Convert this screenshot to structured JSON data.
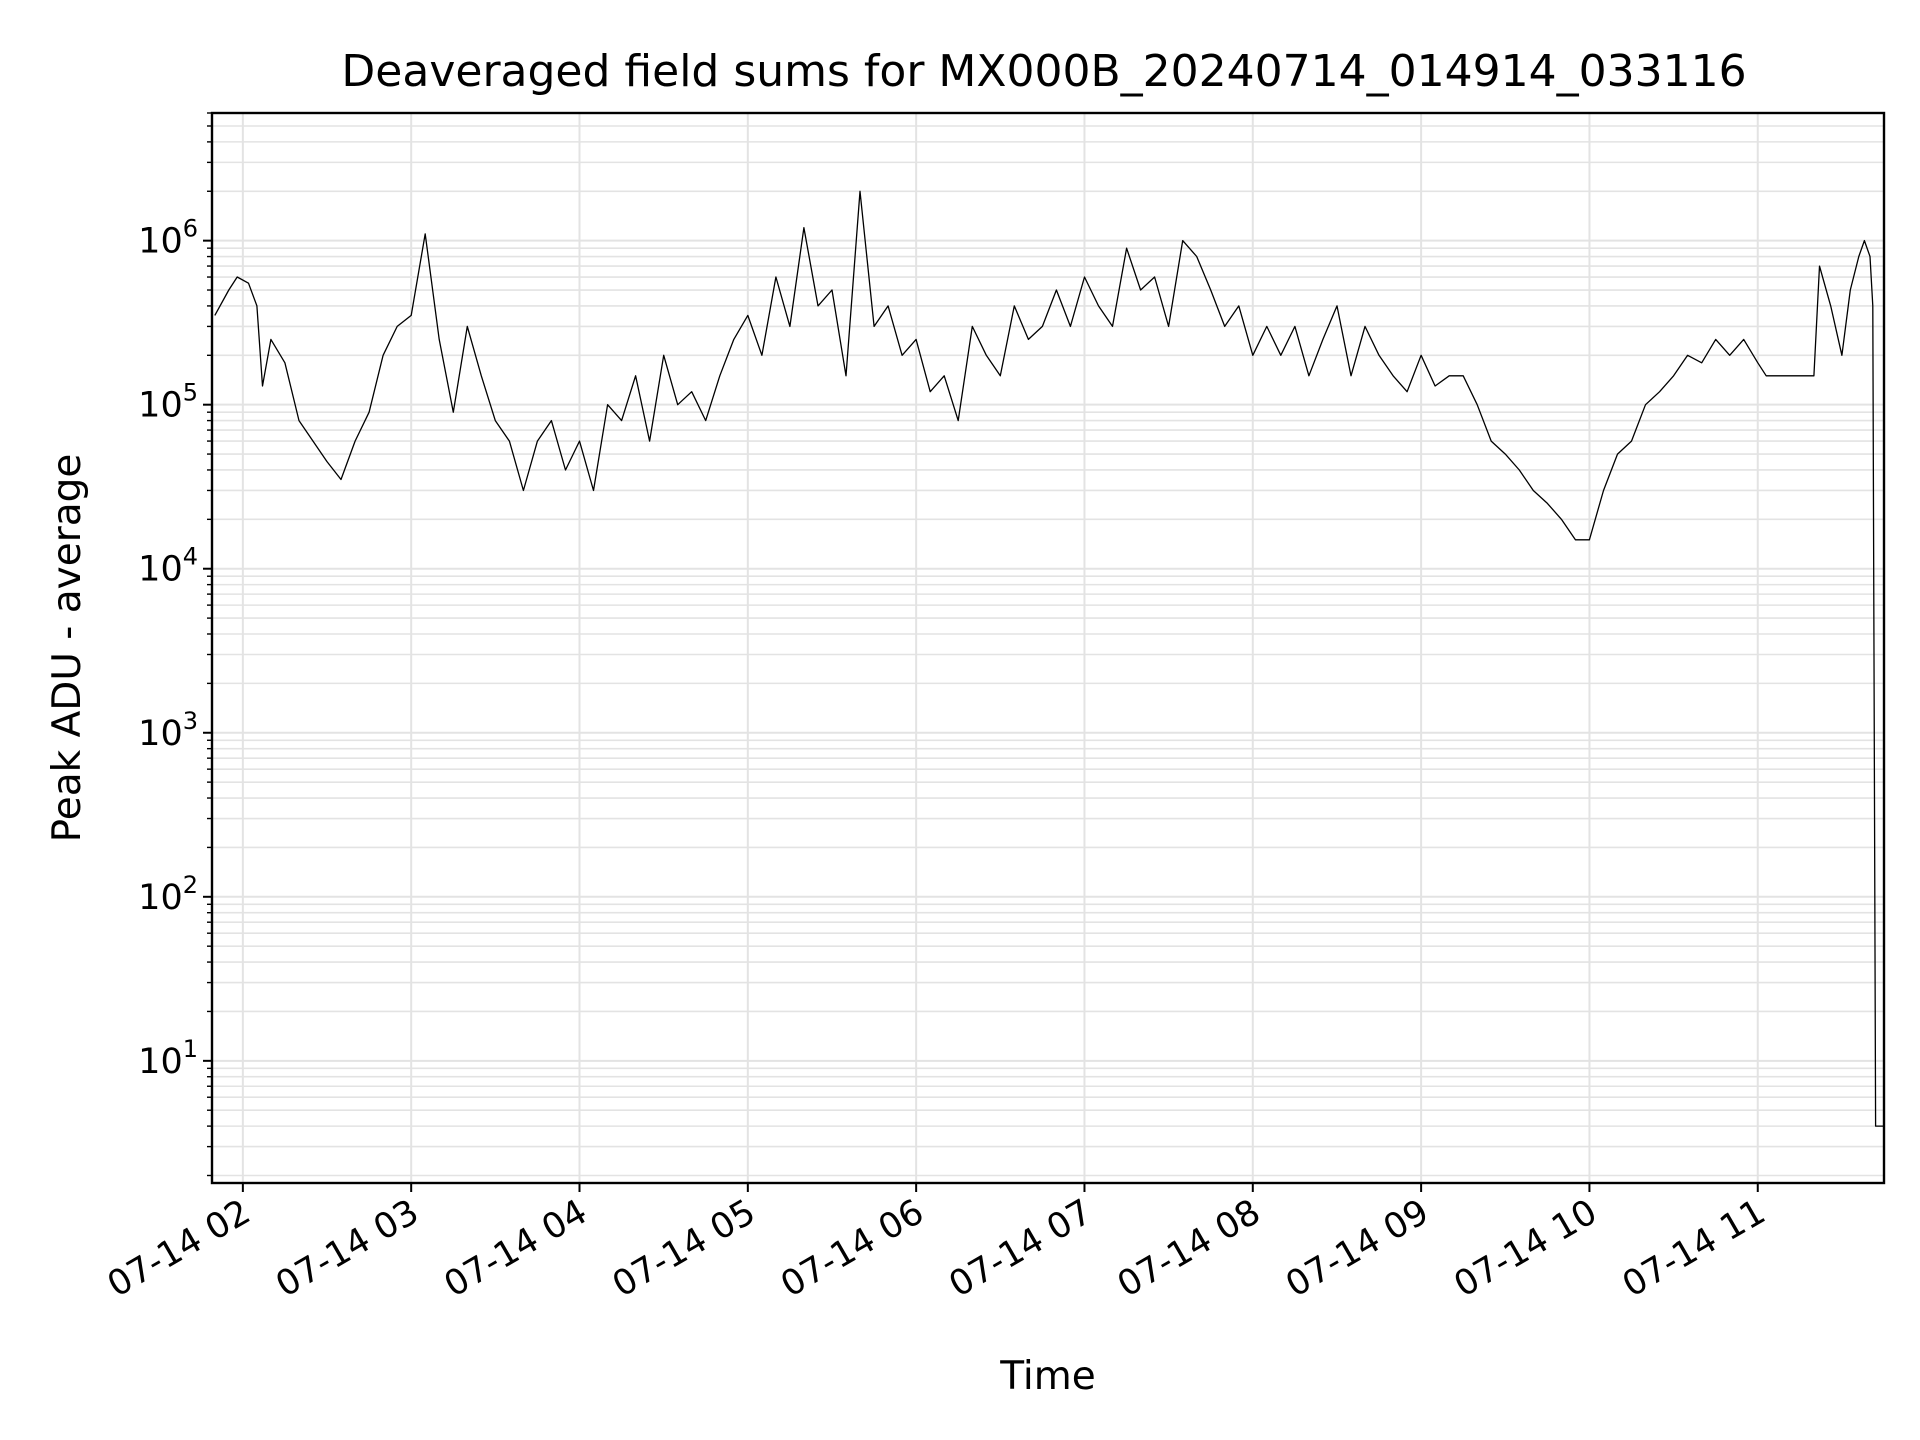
{
  "chart_data": {
    "type": "line",
    "title": "Deaveraged field sums for MX000B_20240714_014914_033116",
    "xlabel": "Time",
    "ylabel": "Peak ADU - average",
    "yscale": "log",
    "ylim": [
      1.8,
      6000000
    ],
    "xlim": [
      "2024-07-14 01:49",
      "2024-07-14 11:45"
    ],
    "grid": true,
    "line_color": "#000000",
    "x_ticks": [
      {
        "t": "2024-07-14 02:00",
        "label": "07-14 02"
      },
      {
        "t": "2024-07-14 03:00",
        "label": "07-14 03"
      },
      {
        "t": "2024-07-14 04:00",
        "label": "07-14 04"
      },
      {
        "t": "2024-07-14 05:00",
        "label": "07-14 05"
      },
      {
        "t": "2024-07-14 06:00",
        "label": "07-14 06"
      },
      {
        "t": "2024-07-14 07:00",
        "label": "07-14 07"
      },
      {
        "t": "2024-07-14 08:00",
        "label": "07-14 08"
      },
      {
        "t": "2024-07-14 09:00",
        "label": "07-14 09"
      },
      {
        "t": "2024-07-14 10:00",
        "label": "07-14 10"
      },
      {
        "t": "2024-07-14 11:00",
        "label": "07-14 11"
      }
    ],
    "y_ticks": [
      {
        "value": 10,
        "base": "10",
        "exp": "1"
      },
      {
        "value": 100,
        "base": "10",
        "exp": "2"
      },
      {
        "value": 1000,
        "base": "10",
        "exp": "3"
      },
      {
        "value": 10000,
        "base": "10",
        "exp": "4"
      },
      {
        "value": 100000,
        "base": "10",
        "exp": "5"
      },
      {
        "value": 1000000,
        "base": "10",
        "exp": "6"
      }
    ],
    "series": [
      {
        "x": [
          "2024-07-14 01:50",
          "2024-07-14 01:55",
          "2024-07-14 01:58",
          "2024-07-14 02:02",
          "2024-07-14 02:05",
          "2024-07-14 02:07",
          "2024-07-14 02:10",
          "2024-07-14 02:15",
          "2024-07-14 02:20",
          "2024-07-14 02:25",
          "2024-07-14 02:30",
          "2024-07-14 02:35",
          "2024-07-14 02:40",
          "2024-07-14 02:45",
          "2024-07-14 02:50",
          "2024-07-14 02:55",
          "2024-07-14 03:00",
          "2024-07-14 03:05",
          "2024-07-14 03:10",
          "2024-07-14 03:15",
          "2024-07-14 03:20",
          "2024-07-14 03:25",
          "2024-07-14 03:30",
          "2024-07-14 03:35",
          "2024-07-14 03:40",
          "2024-07-14 03:45",
          "2024-07-14 03:50",
          "2024-07-14 03:55",
          "2024-07-14 04:00",
          "2024-07-14 04:05",
          "2024-07-14 04:10",
          "2024-07-14 04:15",
          "2024-07-14 04:20",
          "2024-07-14 04:25",
          "2024-07-14 04:30",
          "2024-07-14 04:35",
          "2024-07-14 04:40",
          "2024-07-14 04:45",
          "2024-07-14 04:50",
          "2024-07-14 04:55",
          "2024-07-14 05:00",
          "2024-07-14 05:05",
          "2024-07-14 05:10",
          "2024-07-14 05:15",
          "2024-07-14 05:20",
          "2024-07-14 05:25",
          "2024-07-14 05:30",
          "2024-07-14 05:35",
          "2024-07-14 05:40",
          "2024-07-14 05:45",
          "2024-07-14 05:50",
          "2024-07-14 05:55",
          "2024-07-14 06:00",
          "2024-07-14 06:05",
          "2024-07-14 06:10",
          "2024-07-14 06:15",
          "2024-07-14 06:20",
          "2024-07-14 06:25",
          "2024-07-14 06:30",
          "2024-07-14 06:35",
          "2024-07-14 06:40",
          "2024-07-14 06:45",
          "2024-07-14 06:50",
          "2024-07-14 06:55",
          "2024-07-14 07:00",
          "2024-07-14 07:05",
          "2024-07-14 07:10",
          "2024-07-14 07:15",
          "2024-07-14 07:20",
          "2024-07-14 07:25",
          "2024-07-14 07:30",
          "2024-07-14 07:35",
          "2024-07-14 07:40",
          "2024-07-14 07:45",
          "2024-07-14 07:50",
          "2024-07-14 07:55",
          "2024-07-14 08:00",
          "2024-07-14 08:05",
          "2024-07-14 08:10",
          "2024-07-14 08:15",
          "2024-07-14 08:20",
          "2024-07-14 08:25",
          "2024-07-14 08:30",
          "2024-07-14 08:35",
          "2024-07-14 08:40",
          "2024-07-14 08:45",
          "2024-07-14 08:50",
          "2024-07-14 08:55",
          "2024-07-14 09:00",
          "2024-07-14 09:05",
          "2024-07-14 09:10",
          "2024-07-14 09:15",
          "2024-07-14 09:20",
          "2024-07-14 09:25",
          "2024-07-14 09:30",
          "2024-07-14 09:35",
          "2024-07-14 09:40",
          "2024-07-14 09:45",
          "2024-07-14 09:50",
          "2024-07-14 09:55",
          "2024-07-14 10:00",
          "2024-07-14 10:05",
          "2024-07-14 10:10",
          "2024-07-14 10:15",
          "2024-07-14 10:20",
          "2024-07-14 10:25",
          "2024-07-14 10:30",
          "2024-07-14 10:35",
          "2024-07-14 10:40",
          "2024-07-14 10:45",
          "2024-07-14 10:50",
          "2024-07-14 10:55",
          "2024-07-14 11:00",
          "2024-07-14 11:03",
          "2024-07-14 11:20",
          "2024-07-14 11:22",
          "2024-07-14 11:26",
          "2024-07-14 11:30",
          "2024-07-14 11:33",
          "2024-07-14 11:36",
          "2024-07-14 11:38",
          "2024-07-14 11:40",
          "2024-07-14 11:41",
          "2024-07-14 11:42",
          "2024-07-14 11:45"
        ],
        "y": [
          350000,
          500000,
          600000,
          550000,
          400000,
          130000,
          250000,
          180000,
          80000,
          60000,
          45000,
          35000,
          60000,
          90000,
          200000,
          300000,
          350000,
          1100000,
          250000,
          90000,
          300000,
          150000,
          80000,
          60000,
          30000,
          60000,
          80000,
          40000,
          60000,
          30000,
          100000,
          80000,
          150000,
          60000,
          200000,
          100000,
          120000,
          80000,
          150000,
          250000,
          350000,
          200000,
          600000,
          300000,
          1200000,
          400000,
          500000,
          150000,
          2000000,
          300000,
          400000,
          200000,
          250000,
          120000,
          150000,
          80000,
          300000,
          200000,
          150000,
          400000,
          250000,
          300000,
          500000,
          300000,
          600000,
          400000,
          300000,
          900000,
          500000,
          600000,
          300000,
          1000000,
          800000,
          500000,
          300000,
          400000,
          200000,
          300000,
          200000,
          300000,
          150000,
          250000,
          400000,
          150000,
          300000,
          200000,
          150000,
          120000,
          200000,
          130000,
          150000,
          150000,
          100000,
          60000,
          50000,
          40000,
          30000,
          25000,
          20000,
          15000,
          15000,
          30000,
          50000,
          60000,
          100000,
          120000,
          150000,
          200000,
          180000,
          250000,
          200000,
          250000,
          180000,
          150000,
          150000,
          700000,
          400000,
          200000,
          500000,
          800000,
          1000000,
          800000,
          400000,
          4,
          4
        ]
      }
    ]
  }
}
